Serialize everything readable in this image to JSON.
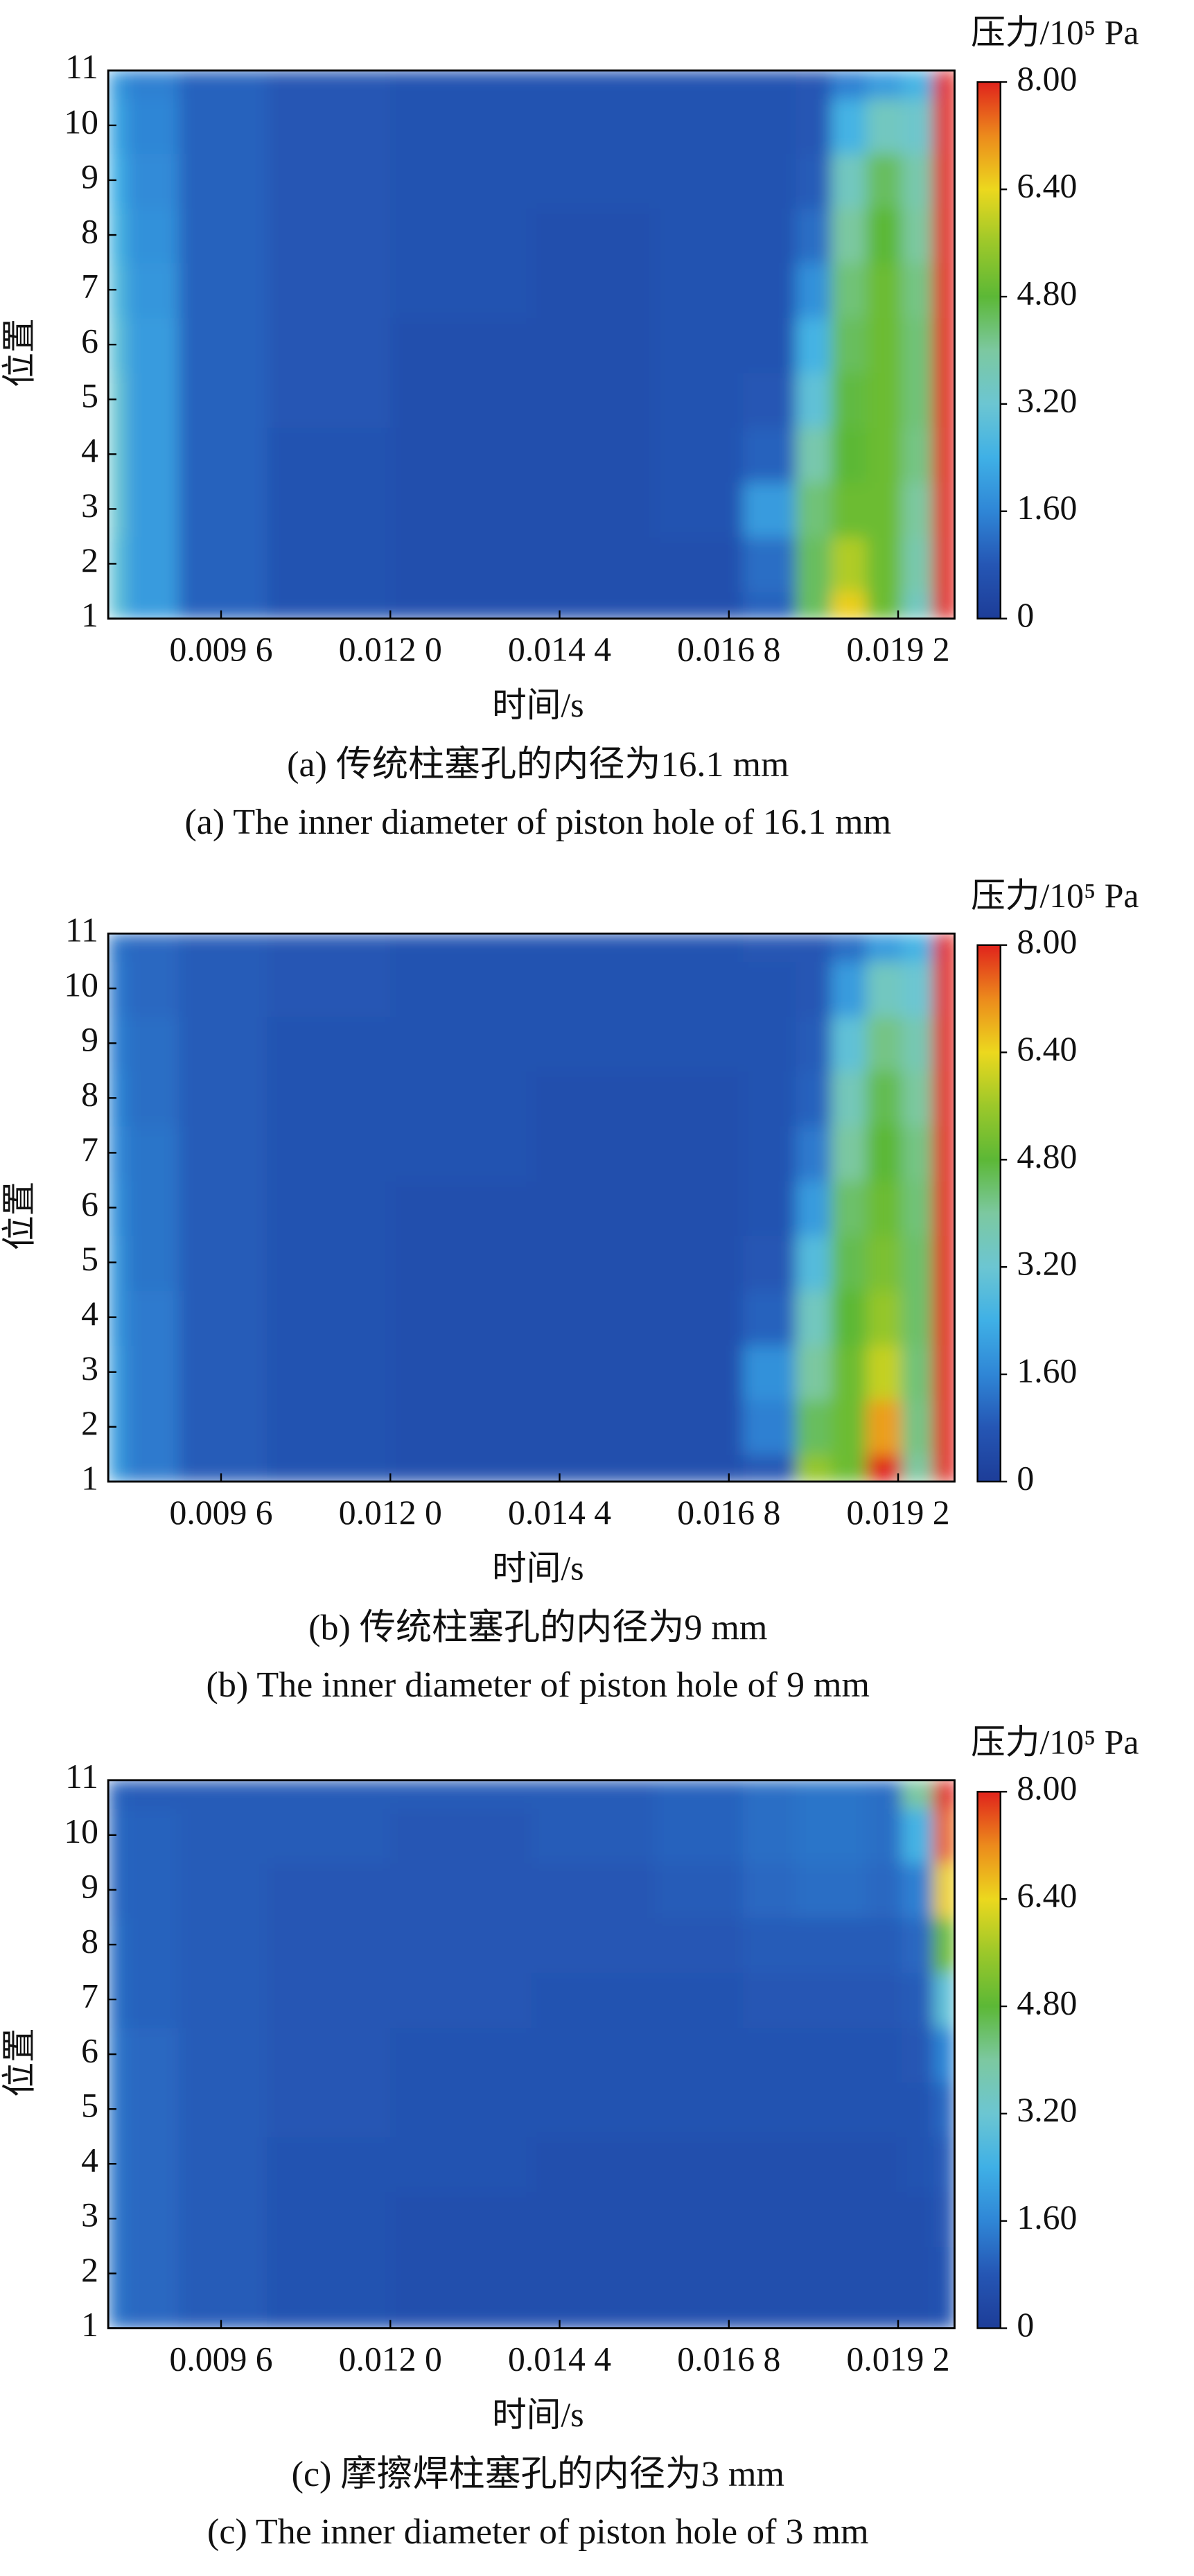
{
  "chart_data": [
    {
      "type": "contour",
      "title": "(a) 传统柱塞孔的内径为16.1 mm",
      "subtitle": "(a) The inner diameter of piston hole of 16.1 mm",
      "xlabel": "时间/s",
      "ylabel": "位置",
      "x": [
        0.008,
        0.0085,
        0.0095,
        0.011,
        0.013,
        0.015,
        0.0165,
        0.0175,
        0.018,
        0.0185,
        0.019,
        0.0195,
        0.0199
      ],
      "y": [
        1,
        2,
        3,
        4,
        5,
        6,
        7,
        8,
        9,
        10,
        11
      ],
      "z": [
        [
          3.0,
          2.0,
          1.0,
          0.7,
          0.6,
          0.6,
          0.6,
          1.0,
          4.5,
          6.5,
          5.0,
          3.5,
          8.0
        ],
        [
          3.0,
          2.0,
          1.0,
          0.7,
          0.6,
          0.6,
          0.6,
          1.2,
          4.5,
          5.8,
          5.0,
          3.8,
          8.0
        ],
        [
          3.2,
          2.0,
          1.0,
          0.7,
          0.6,
          0.6,
          0.7,
          2.0,
          4.3,
          5.0,
          5.0,
          4.0,
          8.0
        ],
        [
          3.2,
          2.0,
          1.0,
          0.7,
          0.6,
          0.6,
          0.7,
          1.0,
          3.8,
          4.8,
          5.0,
          4.2,
          8.0
        ],
        [
          3.2,
          2.0,
          1.0,
          0.8,
          0.6,
          0.6,
          0.7,
          0.8,
          3.0,
          4.7,
          5.0,
          4.3,
          8.0
        ],
        [
          3.0,
          2.0,
          1.0,
          0.8,
          0.6,
          0.6,
          0.7,
          0.7,
          2.5,
          4.5,
          5.0,
          4.3,
          8.0
        ],
        [
          2.8,
          1.9,
          1.0,
          0.8,
          0.7,
          0.6,
          0.7,
          0.7,
          1.8,
          4.3,
          5.0,
          4.2,
          8.0
        ],
        [
          2.6,
          1.8,
          1.0,
          0.8,
          0.7,
          0.6,
          0.7,
          0.7,
          1.2,
          4.0,
          4.8,
          4.0,
          8.0
        ],
        [
          2.4,
          1.7,
          1.0,
          0.8,
          0.7,
          0.7,
          0.7,
          0.7,
          0.9,
          3.5,
          4.5,
          3.8,
          8.0
        ],
        [
          2.2,
          1.6,
          1.0,
          0.8,
          0.7,
          0.7,
          0.7,
          0.7,
          0.8,
          2.5,
          3.5,
          3.3,
          8.0
        ],
        [
          2.0,
          1.5,
          1.0,
          0.8,
          0.7,
          0.7,
          0.7,
          0.7,
          0.8,
          1.5,
          2.0,
          2.5,
          8.0
        ]
      ],
      "xlim": [
        0.008,
        0.02
      ],
      "xticks": [
        {
          "value": 0.0096,
          "label": "0.009 6"
        },
        {
          "value": 0.012,
          "label": "0.012 0"
        },
        {
          "value": 0.0144,
          "label": "0.014 4"
        },
        {
          "value": 0.0168,
          "label": "0.016 8"
        },
        {
          "value": 0.0192,
          "label": "0.019 2"
        }
      ],
      "ylim": [
        1,
        11
      ],
      "yticks": [
        1,
        2,
        3,
        4,
        5,
        6,
        7,
        8,
        9,
        10,
        11
      ],
      "colorbar": {
        "label": "压力/10⁵ Pa",
        "clim": [
          0,
          8
        ],
        "ticks": [
          0,
          {
            "value": 1.6,
            "label": "1.60"
          },
          {
            "value": 3.2,
            "label": "3.20"
          },
          {
            "value": 4.8,
            "label": "4.80"
          },
          {
            "value": 6.4,
            "label": "6.40"
          },
          {
            "value": 8,
            "label": "8.00"
          }
        ]
      },
      "colorscale": [
        [
          0,
          "#1d3d98"
        ],
        [
          0.1,
          "#2556b4"
        ],
        [
          0.2,
          "#2f86d6"
        ],
        [
          0.3,
          "#3fb0e6"
        ],
        [
          0.4,
          "#6cc6d2"
        ],
        [
          0.5,
          "#7cc8a0"
        ],
        [
          0.6,
          "#5cb836"
        ],
        [
          0.7,
          "#9cc82a"
        ],
        [
          0.8,
          "#ecd81e"
        ],
        [
          0.9,
          "#ec8a1c"
        ],
        [
          1,
          "#e0231c"
        ]
      ]
    },
    {
      "type": "contour",
      "title": "(b) 传统柱塞孔的内径为9 mm",
      "subtitle": "(b) The inner diameter of piston hole of 9 mm",
      "xlabel": "时间/s",
      "ylabel": "位置",
      "x": [
        0.008,
        0.0085,
        0.0095,
        0.011,
        0.013,
        0.015,
        0.0165,
        0.0175,
        0.018,
        0.0185,
        0.019,
        0.0195,
        0.0199
      ],
      "y": [
        1,
        2,
        3,
        4,
        5,
        6,
        7,
        8,
        9,
        10,
        11
      ],
      "z": [
        [
          2.0,
          1.4,
          0.9,
          0.7,
          0.6,
          0.6,
          0.6,
          0.8,
          5.5,
          5.0,
          8.0,
          4.0,
          8.0
        ],
        [
          2.0,
          1.4,
          0.9,
          0.7,
          0.6,
          0.6,
          0.6,
          1.5,
          4.5,
          5.0,
          7.0,
          4.2,
          8.0
        ],
        [
          2.0,
          1.4,
          0.9,
          0.7,
          0.6,
          0.6,
          0.6,
          1.8,
          4.0,
          5.0,
          6.0,
          4.3,
          8.0
        ],
        [
          1.9,
          1.4,
          0.9,
          0.7,
          0.6,
          0.6,
          0.6,
          1.0,
          3.5,
          4.8,
          5.5,
          4.4,
          8.0
        ],
        [
          1.9,
          1.3,
          0.9,
          0.7,
          0.6,
          0.6,
          0.6,
          0.8,
          2.8,
          4.6,
          5.2,
          4.4,
          8.0
        ],
        [
          1.8,
          1.3,
          0.9,
          0.7,
          0.6,
          0.6,
          0.6,
          0.7,
          2.0,
          4.4,
          5.0,
          4.3,
          8.0
        ],
        [
          1.7,
          1.3,
          0.9,
          0.7,
          0.7,
          0.6,
          0.6,
          0.7,
          1.4,
          4.0,
          4.8,
          4.2,
          8.0
        ],
        [
          1.6,
          1.2,
          0.9,
          0.7,
          0.7,
          0.6,
          0.6,
          0.7,
          1.0,
          3.6,
          4.6,
          4.0,
          8.0
        ],
        [
          1.5,
          1.2,
          0.9,
          0.7,
          0.7,
          0.7,
          0.7,
          0.7,
          0.9,
          3.0,
          4.2,
          3.7,
          8.0
        ],
        [
          1.4,
          1.1,
          0.9,
          0.8,
          0.7,
          0.7,
          0.7,
          0.7,
          0.8,
          2.0,
          3.5,
          3.2,
          8.0
        ],
        [
          1.3,
          1.1,
          0.9,
          0.8,
          0.7,
          0.7,
          0.7,
          0.8,
          0.8,
          1.2,
          2.0,
          2.5,
          8.0
        ]
      ],
      "xlim": [
        0.008,
        0.02
      ],
      "xticks": [
        {
          "value": 0.0096,
          "label": "0.009 6"
        },
        {
          "value": 0.012,
          "label": "0.012 0"
        },
        {
          "value": 0.0144,
          "label": "0.014 4"
        },
        {
          "value": 0.0168,
          "label": "0.016 8"
        },
        {
          "value": 0.0192,
          "label": "0.019 2"
        }
      ],
      "ylim": [
        1,
        11
      ],
      "yticks": [
        1,
        2,
        3,
        4,
        5,
        6,
        7,
        8,
        9,
        10,
        11
      ],
      "colorbar": {
        "label": "压力/10⁵ Pa",
        "clim": [
          0,
          8
        ],
        "ticks": [
          0,
          {
            "value": 1.6,
            "label": "1.60"
          },
          {
            "value": 3.2,
            "label": "3.20"
          },
          {
            "value": 4.8,
            "label": "4.80"
          },
          {
            "value": 6.4,
            "label": "6.40"
          },
          {
            "value": 8,
            "label": "8.00"
          }
        ]
      },
      "colorscale": [
        [
          0,
          "#1d3d98"
        ],
        [
          0.1,
          "#2556b4"
        ],
        [
          0.2,
          "#2f86d6"
        ],
        [
          0.3,
          "#3fb0e6"
        ],
        [
          0.4,
          "#6cc6d2"
        ],
        [
          0.5,
          "#7cc8a0"
        ],
        [
          0.6,
          "#5cb836"
        ],
        [
          0.7,
          "#9cc82a"
        ],
        [
          0.8,
          "#ecd81e"
        ],
        [
          0.9,
          "#ec8a1c"
        ],
        [
          1,
          "#e0231c"
        ]
      ]
    },
    {
      "type": "contour",
      "title": "(c) 摩擦焊柱塞孔的内径为3 mm",
      "subtitle": "(c) The inner diameter of piston hole of 3 mm",
      "xlabel": "时间/s",
      "ylabel": "位置",
      "x": [
        0.008,
        0.0085,
        0.0095,
        0.011,
        0.013,
        0.015,
        0.0165,
        0.0175,
        0.018,
        0.0185,
        0.019,
        0.0195,
        0.0199
      ],
      "y": [
        1,
        2,
        3,
        4,
        5,
        6,
        7,
        8,
        9,
        10,
        11
      ],
      "z": [
        [
          1.3,
          1.1,
          0.9,
          0.7,
          0.6,
          0.6,
          0.6,
          0.6,
          0.6,
          0.6,
          0.6,
          0.6,
          0.7
        ],
        [
          1.3,
          1.1,
          0.9,
          0.7,
          0.6,
          0.6,
          0.6,
          0.6,
          0.6,
          0.6,
          0.6,
          0.6,
          0.7
        ],
        [
          1.3,
          1.1,
          0.9,
          0.7,
          0.6,
          0.6,
          0.6,
          0.6,
          0.6,
          0.6,
          0.6,
          0.6,
          0.8
        ],
        [
          1.3,
          1.1,
          0.9,
          0.7,
          0.7,
          0.6,
          0.6,
          0.6,
          0.6,
          0.6,
          0.6,
          0.7,
          0.9
        ],
        [
          1.3,
          1.1,
          0.9,
          0.8,
          0.7,
          0.7,
          0.7,
          0.7,
          0.7,
          0.7,
          0.7,
          0.7,
          1.1
        ],
        [
          1.3,
          1.1,
          0.9,
          0.8,
          0.7,
          0.7,
          0.7,
          0.7,
          0.7,
          0.7,
          0.7,
          0.8,
          1.6
        ],
        [
          1.2,
          1.0,
          0.9,
          0.8,
          0.8,
          0.7,
          0.7,
          0.8,
          0.8,
          0.8,
          0.8,
          0.9,
          3.0
        ],
        [
          1.2,
          1.0,
          0.9,
          0.8,
          0.8,
          0.8,
          0.8,
          0.9,
          0.9,
          0.9,
          0.9,
          1.1,
          5.0
        ],
        [
          1.1,
          1.0,
          0.9,
          0.8,
          0.8,
          0.8,
          0.9,
          1.1,
          1.2,
          1.2,
          1.1,
          1.5,
          6.5
        ],
        [
          1.1,
          1.0,
          0.9,
          0.9,
          0.8,
          0.9,
          1.0,
          1.2,
          1.3,
          1.3,
          1.2,
          2.5,
          7.5
        ],
        [
          1.0,
          0.9,
          0.9,
          0.9,
          0.9,
          0.9,
          1.0,
          1.2,
          1.3,
          1.3,
          1.2,
          4.0,
          8.0
        ]
      ],
      "xlim": [
        0.008,
        0.02
      ],
      "xticks": [
        {
          "value": 0.0096,
          "label": "0.009 6"
        },
        {
          "value": 0.012,
          "label": "0.012 0"
        },
        {
          "value": 0.0144,
          "label": "0.014 4"
        },
        {
          "value": 0.0168,
          "label": "0.016 8"
        },
        {
          "value": 0.0192,
          "label": "0.019 2"
        }
      ],
      "ylim": [
        1,
        11
      ],
      "yticks": [
        1,
        2,
        3,
        4,
        5,
        6,
        7,
        8,
        9,
        10,
        11
      ],
      "colorbar": {
        "label": "压力/10⁵ Pa",
        "clim": [
          0,
          8
        ],
        "ticks": [
          0,
          {
            "value": 1.6,
            "label": "1.60"
          },
          {
            "value": 3.2,
            "label": "3.20"
          },
          {
            "value": 4.8,
            "label": "4.80"
          },
          {
            "value": 6.4,
            "label": "6.40"
          },
          {
            "value": 8,
            "label": "8.00"
          }
        ]
      },
      "colorscale": [
        [
          0,
          "#1d3d98"
        ],
        [
          0.1,
          "#2556b4"
        ],
        [
          0.2,
          "#2f86d6"
        ],
        [
          0.3,
          "#3fb0e6"
        ],
        [
          0.4,
          "#6cc6d2"
        ],
        [
          0.5,
          "#7cc8a0"
        ],
        [
          0.6,
          "#5cb836"
        ],
        [
          0.7,
          "#9cc82a"
        ],
        [
          0.8,
          "#ecd81e"
        ],
        [
          0.9,
          "#ec8a1c"
        ],
        [
          1,
          "#e0231c"
        ]
      ]
    }
  ]
}
